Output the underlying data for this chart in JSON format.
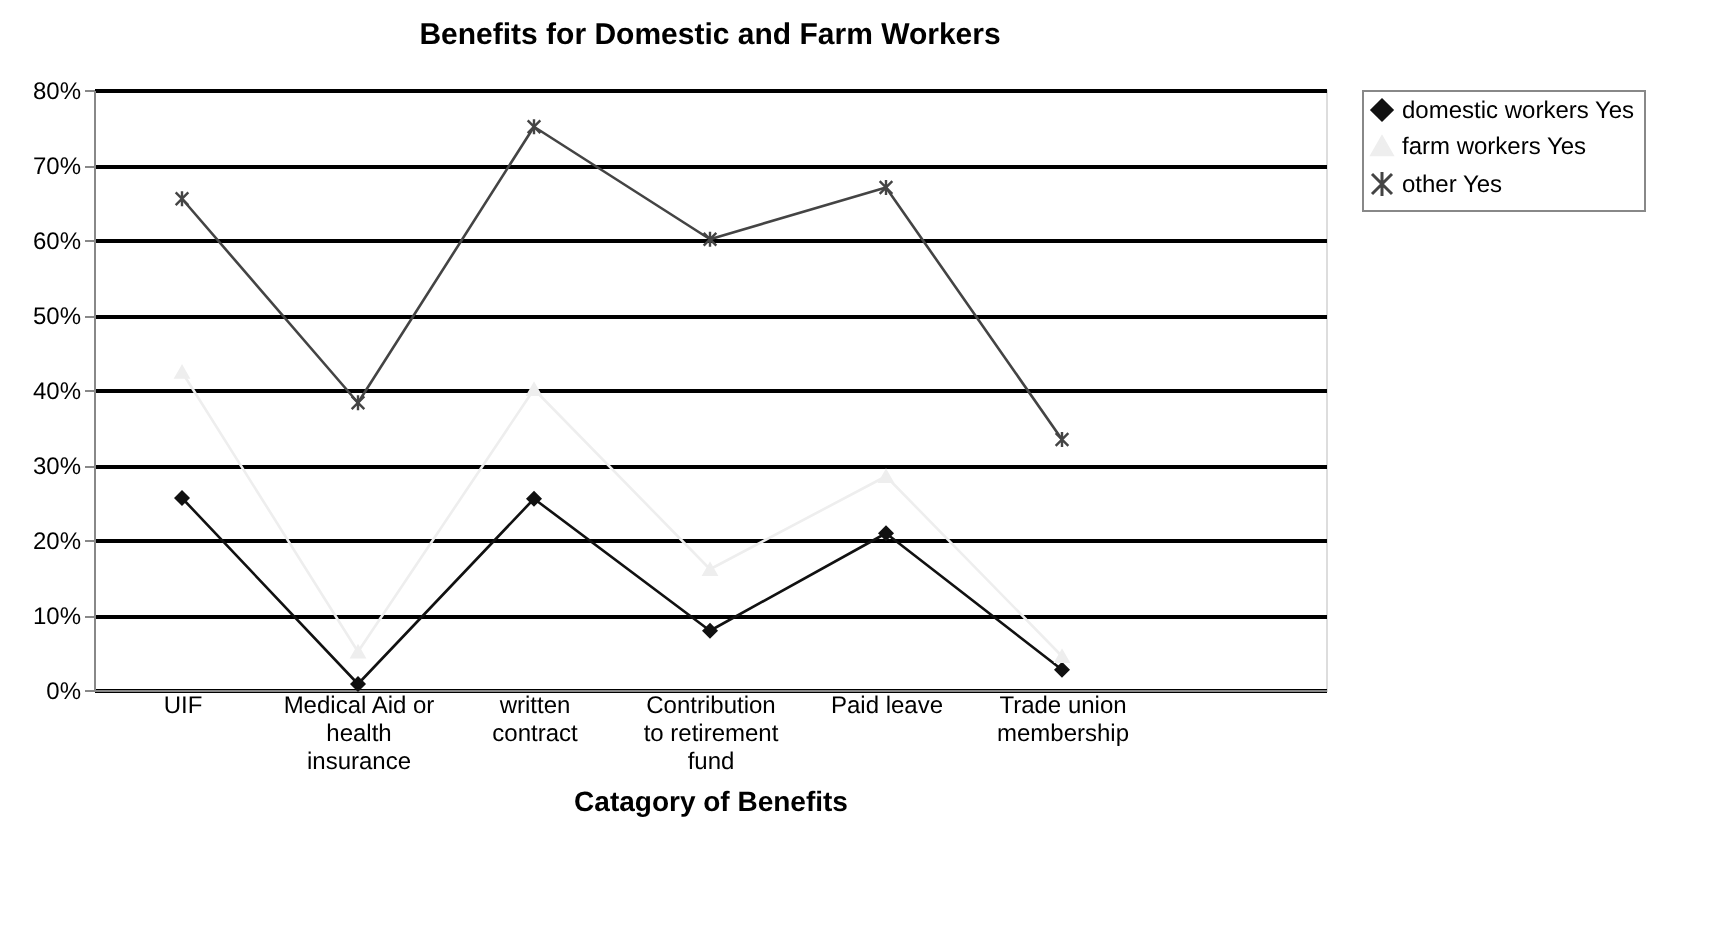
{
  "chart_data": {
    "type": "line",
    "title": "Benefits for Domestic and Farm Workers",
    "xlabel": "Catagory of Benefits",
    "categories": [
      "UIF",
      "Medical Aid or health insurance",
      "written contract",
      "Contribution to retirement fund",
      "Paid leave",
      "Trade union membership",
      null
    ],
    "series": [
      {
        "name": "domestic workers Yes",
        "color": "#111111",
        "marker": "diamond",
        "values": [
          25.6,
          0.8,
          25.5,
          7.9,
          20.9,
          2.7,
          null
        ]
      },
      {
        "name": "farm workers Yes",
        "color": "#eeeeee",
        "marker": "triangle",
        "values": [
          42.4,
          5.1,
          40.1,
          16.1,
          28.5,
          4.5,
          null
        ]
      },
      {
        "name": "other Yes",
        "color": "#444444",
        "marker": "cross",
        "values": [
          65.5,
          38.3,
          75.1,
          60.1,
          67.0,
          33.4,
          null
        ]
      }
    ],
    "ylim": [
      0,
      80
    ],
    "yticks": [
      {
        "value": 0,
        "label": "0%"
      },
      {
        "value": 10,
        "label": "10%"
      },
      {
        "value": 20,
        "label": "20%"
      },
      {
        "value": 30,
        "label": "30%"
      },
      {
        "value": 40,
        "label": "40%"
      },
      {
        "value": 50,
        "label": "50%"
      },
      {
        "value": 60,
        "label": "60%"
      },
      {
        "value": 70,
        "label": "70%"
      },
      {
        "value": 80,
        "label": "80%"
      }
    ],
    "grid": "y",
    "legend": "right"
  }
}
